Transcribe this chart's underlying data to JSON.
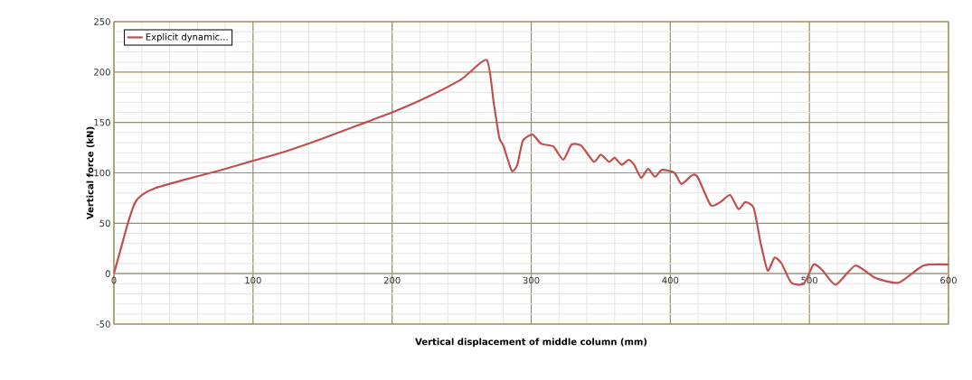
{
  "chart_data": {
    "type": "line",
    "xlabel": "Vertical displacement of middle column (mm)",
    "ylabel": "Vertical force (kN)",
    "xlim": [
      0,
      600
    ],
    "ylim": [
      -50,
      250
    ],
    "xticks": [
      0,
      100,
      200,
      300,
      400,
      500,
      600
    ],
    "yticks": [
      -50,
      0,
      50,
      100,
      150,
      200,
      250
    ],
    "grid": true,
    "legend": "top left",
    "marker": "none",
    "line_style": "solid",
    "series": [
      {
        "name": "Explicit dynamic...",
        "color": "#c0504d",
        "x": [
          0,
          5,
          10,
          15,
          20,
          30,
          50,
          75,
          100,
          125,
          150,
          175,
          200,
          225,
          250,
          268,
          273,
          277,
          280,
          286,
          290,
          294,
          301,
          307,
          316,
          323,
          329,
          336,
          345,
          350,
          356,
          360,
          365,
          370,
          374,
          379,
          384,
          389,
          394,
          403,
          408,
          416,
          420,
          429,
          436,
          443,
          449,
          454,
          460,
          465,
          470,
          475,
          480,
          487,
          496,
          503,
          509,
          519,
          533,
          547,
          564,
          582,
          600
        ],
        "values": [
          0,
          25,
          50,
          70,
          78,
          85,
          93,
          102,
          112,
          122,
          134,
          147,
          160,
          175,
          193,
          212,
          170,
          135,
          127,
          102,
          108,
          132,
          138,
          129,
          126,
          113,
          128,
          127,
          111,
          118,
          111,
          115,
          108,
          113,
          108,
          95,
          104,
          96,
          103,
          100,
          89,
          98,
          95,
          68,
          71,
          78,
          64,
          71,
          65,
          30,
          3,
          16,
          10,
          -9,
          -10,
          9,
          4,
          -11,
          8,
          -4,
          -9,
          8,
          9
        ]
      }
    ]
  }
}
